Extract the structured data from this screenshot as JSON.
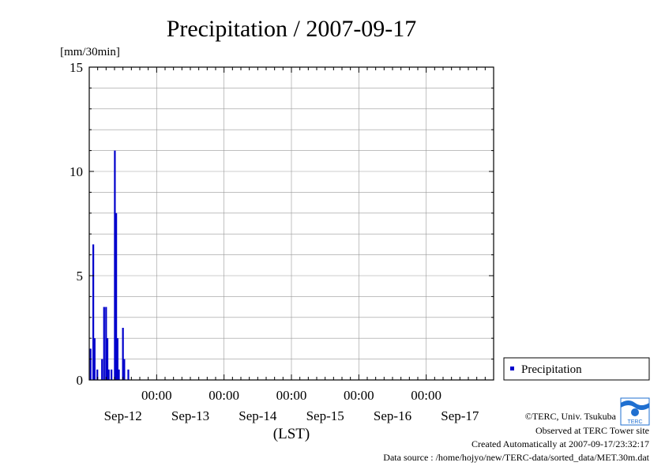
{
  "colors": {
    "bar": "#0000cc",
    "grid": "#999999",
    "axis": "#000000",
    "background": "#ffffff"
  },
  "chart_data": {
    "type": "bar",
    "title": "Precipitation / 2007-09-17",
    "ylabel": "[mm/30min]",
    "xlabel": "(LST)",
    "ylim": [
      0,
      15
    ],
    "y_ticks": [
      0,
      5,
      10,
      15
    ],
    "x_range_days": [
      0,
      6
    ],
    "x_time_ticks": [
      {
        "day": 1,
        "label": "00:00"
      },
      {
        "day": 2,
        "label": "00:00"
      },
      {
        "day": 3,
        "label": "00:00"
      },
      {
        "day": 4,
        "label": "00:00"
      },
      {
        "day": 5,
        "label": "00:00"
      }
    ],
    "x_date_labels": [
      {
        "day": 0.5,
        "label": "Sep-12"
      },
      {
        "day": 1.5,
        "label": "Sep-13"
      },
      {
        "day": 2.5,
        "label": "Sep-14"
      },
      {
        "day": 3.5,
        "label": "Sep-15"
      },
      {
        "day": 4.5,
        "label": "Sep-16"
      },
      {
        "day": 5.5,
        "label": "Sep-17"
      }
    ],
    "grid": true,
    "legend": {
      "position": "right",
      "entries": [
        "Precipitation"
      ]
    },
    "series": [
      {
        "name": "Precipitation",
        "points": [
          {
            "t": 0.02,
            "v": 1.5
          },
          {
            "t": 0.06,
            "v": 6.5
          },
          {
            "t": 0.08,
            "v": 2.0
          },
          {
            "t": 0.12,
            "v": 0.5
          },
          {
            "t": 0.19,
            "v": 1.0
          },
          {
            "t": 0.22,
            "v": 3.5
          },
          {
            "t": 0.25,
            "v": 3.5
          },
          {
            "t": 0.27,
            "v": 2.0
          },
          {
            "t": 0.29,
            "v": 0.5
          },
          {
            "t": 0.33,
            "v": 0.5
          },
          {
            "t": 0.38,
            "v": 11.0
          },
          {
            "t": 0.4,
            "v": 8.0
          },
          {
            "t": 0.42,
            "v": 2.0
          },
          {
            "t": 0.44,
            "v": 0.5
          },
          {
            "t": 0.5,
            "v": 2.5
          },
          {
            "t": 0.52,
            "v": 1.0
          },
          {
            "t": 0.58,
            "v": 0.5
          }
        ]
      }
    ]
  },
  "footer": {
    "copyright": "©TERC, Univ. Tsukuba",
    "observed": "Observed at TERC Tower site",
    "created": "Created Automatically at 2007-09-17/23:32:17",
    "source": "Data source : /home/hojyo/new/TERC-data/sorted_data/MET.30m.dat",
    "logo_text": "TERC"
  }
}
